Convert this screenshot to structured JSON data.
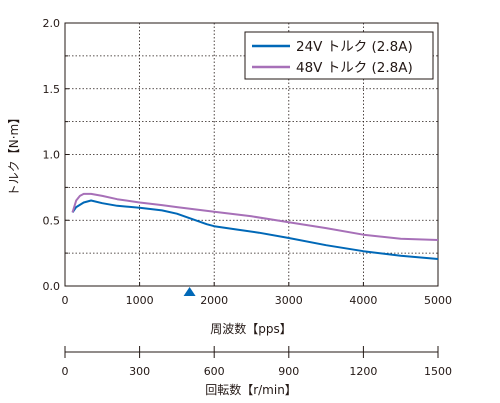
{
  "chart_data": {
    "type": "line",
    "xlabel": "周波数【pps】",
    "ylabel": "トルク【N·m】",
    "xlim": [
      0,
      5000
    ],
    "ylim": [
      0,
      2.0
    ],
    "x_ticks": [
      0,
      1000,
      2000,
      3000,
      4000,
      5000
    ],
    "x_tick_labels": [
      "0",
      "1000",
      "2000",
      "3000",
      "4000",
      "5000"
    ],
    "y_ticks": [
      0,
      0.5,
      1.0,
      1.5,
      2.0
    ],
    "y_tick_labels": [
      "0.0",
      "0.5",
      "1.0",
      "1.5",
      "2.0"
    ],
    "grid": true,
    "legend_position": "top-right",
    "marker": {
      "shape": "triangle",
      "x": 1670,
      "color": "#0068b7"
    },
    "secondary_axis": {
      "label": "回転数【r/min】",
      "ticks": [
        0,
        300,
        600,
        900,
        1200,
        1500
      ],
      "tick_labels": [
        "0",
        "300",
        "600",
        "900",
        "1200",
        "1500"
      ],
      "range": [
        0,
        1500
      ]
    },
    "series": [
      {
        "name": "24V トルク (2.8A)",
        "color": "#0068b7",
        "points": [
          [
            100,
            0.56
          ],
          [
            150,
            0.6
          ],
          [
            250,
            0.635
          ],
          [
            350,
            0.65
          ],
          [
            500,
            0.63
          ],
          [
            700,
            0.61
          ],
          [
            1000,
            0.595
          ],
          [
            1300,
            0.575
          ],
          [
            1500,
            0.55
          ],
          [
            1700,
            0.51
          ],
          [
            1900,
            0.47
          ],
          [
            2000,
            0.455
          ],
          [
            2300,
            0.43
          ],
          [
            2600,
            0.405
          ],
          [
            3000,
            0.365
          ],
          [
            3500,
            0.31
          ],
          [
            4000,
            0.265
          ],
          [
            4500,
            0.23
          ],
          [
            5000,
            0.205
          ]
        ]
      },
      {
        "name": "48V トルク (2.8A)",
        "color": "#a770b8",
        "points": [
          [
            100,
            0.56
          ],
          [
            150,
            0.65
          ],
          [
            200,
            0.685
          ],
          [
            250,
            0.7
          ],
          [
            350,
            0.7
          ],
          [
            500,
            0.685
          ],
          [
            700,
            0.66
          ],
          [
            1000,
            0.635
          ],
          [
            1300,
            0.615
          ],
          [
            1500,
            0.6
          ],
          [
            2000,
            0.565
          ],
          [
            2500,
            0.53
          ],
          [
            3000,
            0.485
          ],
          [
            3500,
            0.44
          ],
          [
            4000,
            0.39
          ],
          [
            4500,
            0.36
          ],
          [
            5000,
            0.35
          ]
        ]
      }
    ]
  }
}
